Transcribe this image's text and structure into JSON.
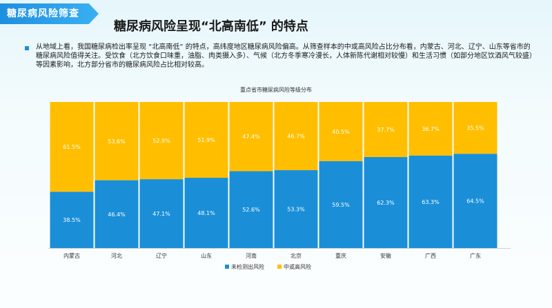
{
  "header": {
    "badge": "糖尿病风险筛查",
    "title": "糖尿病风险呈现“北高南低” 的特点"
  },
  "description": "从地域上看，我国糖尿病检出率呈现 “北高南低” 的特点，高纬度地区糖尿病风险偏高。从筛查样本的中或高风险占比分布看，内蒙古、河北、辽宁、山东等省市的糖尿病风险值得关注。受饮食（北方饮食口味重，油脂、肉类摄入多）、气候（北方冬季寒冷漫长，人体新陈代谢相对较慢）和生活习惯（如部分地区饮酒风气较盛）等因素影响，北方部分省市的糖尿病风险占比相对较高。",
  "colors": {
    "low": "#1a8fd8",
    "high": "#ffbf00",
    "accent": "#1e8fe0"
  },
  "chart_data": {
    "type": "bar",
    "stacked": true,
    "percent": true,
    "title": "重点省市糖尿病风险等级分布",
    "categories": [
      "内蒙古",
      "河北",
      "辽宁",
      "山东",
      "河南",
      "北京",
      "重庆",
      "安徽",
      "广西",
      "广东"
    ],
    "series": [
      {
        "name": "未检测出风险",
        "values": [
          38.5,
          46.4,
          47.1,
          48.1,
          52.6,
          53.3,
          59.5,
          62.3,
          63.3,
          64.5
        ]
      },
      {
        "name": "中或高风险",
        "values": [
          61.5,
          53.6,
          52.9,
          51.9,
          47.4,
          46.7,
          40.5,
          37.7,
          36.7,
          35.5
        ]
      }
    ],
    "ylim": [
      0,
      100
    ],
    "legend_position": "bottom",
    "grid": false
  }
}
